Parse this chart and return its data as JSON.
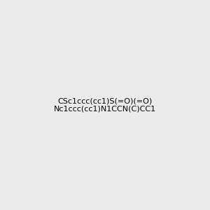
{
  "smiles": "CS c1ccc(cc1) S(=O)(=O) Nc1ccc(cc1) N1CCN(C)CC1",
  "smiles_clean": "CSc1ccc(cc1)S(=O)(=O)Nc1ccc(cc1)N1CCN(C)CC1",
  "bg_color": "#ebebeb",
  "bond_color": "#000000",
  "atom_colors": {
    "N": "#0000ff",
    "O": "#ff0000",
    "S": "#cccc00"
  },
  "img_size": [
    300,
    300
  ]
}
